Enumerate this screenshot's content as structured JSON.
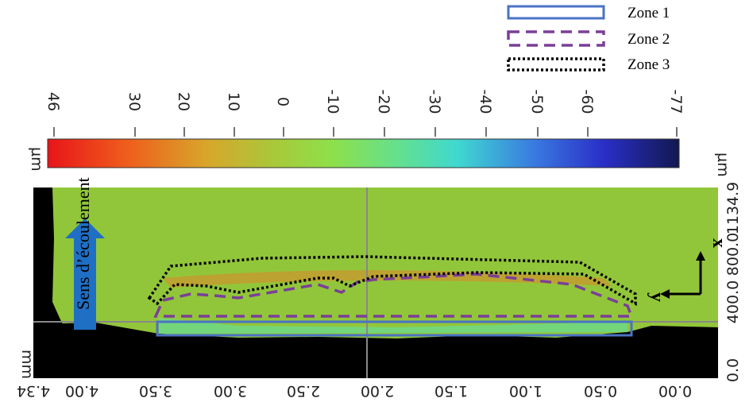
{
  "legend": [
    {
      "label": "Zone 1"
    },
    {
      "label": "Zone 2"
    },
    {
      "label": "Zone 3"
    }
  ],
  "colorbar": {
    "unit": "µm",
    "ticks": [
      "46",
      "30",
      "20",
      "10",
      "0",
      "-10",
      "-20",
      "-30",
      "-40",
      "-50",
      "-60",
      "-77"
    ]
  },
  "x_axis": {
    "unit": "mm",
    "ticks": [
      "4.34",
      "4.00",
      "3.50",
      "3.00",
      "2.50",
      "2.00",
      "1.50",
      "1.00",
      "0.50",
      "0.00"
    ]
  },
  "y_axis": {
    "unit": "µm",
    "ticks": [
      "0.0",
      "400.0",
      "800.0",
      "1134.9"
    ]
  },
  "annotations": {
    "flow": "Sens d’écoulement",
    "x": "x",
    "y": "y"
  }
}
